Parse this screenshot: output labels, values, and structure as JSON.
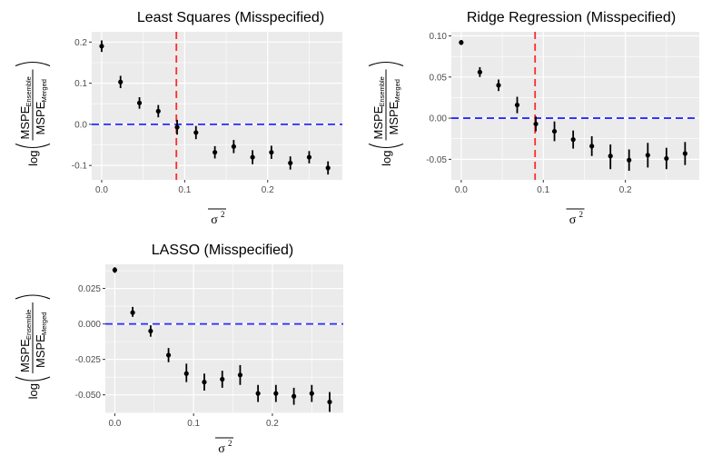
{
  "chart_data": [
    {
      "type": "scatter",
      "title": "Least Squares (Misspecified)",
      "xlabel": {
        "base": "σ",
        "sup": "2",
        "overline": true
      },
      "ylabel": {
        "log": "log",
        "numerator_main": "MSPE",
        "numerator_sub": "Ensemble",
        "denominator_main": "MSPE",
        "denominator_sub": "Merged"
      },
      "xlim": [
        -0.012,
        0.29
      ],
      "ylim": [
        -0.135,
        0.225
      ],
      "x_ticks": [
        0.0,
        0.1,
        0.2
      ],
      "x_tick_labels": [
        "0.0",
        "0.1",
        "0.2"
      ],
      "y_ticks": [
        -0.1,
        0.0,
        0.1,
        0.2
      ],
      "y_tick_labels": [
        "-0.1",
        "0.0",
        "0.1",
        "0.2"
      ],
      "vline": {
        "x": 0.09,
        "color": "#ff2b2b",
        "style": "dashed"
      },
      "hline": {
        "y": 0.0,
        "color": "#2b2bff",
        "style": "dashed"
      },
      "grid": true,
      "points": [
        {
          "x": 0.0,
          "y": 0.19,
          "lo": 0.176,
          "hi": 0.204
        },
        {
          "x": 0.0227,
          "y": 0.103,
          "lo": 0.088,
          "hi": 0.118
        },
        {
          "x": 0.0455,
          "y": 0.052,
          "lo": 0.038,
          "hi": 0.066
        },
        {
          "x": 0.0682,
          "y": 0.032,
          "lo": 0.017,
          "hi": 0.047
        },
        {
          "x": 0.0909,
          "y": -0.007,
          "lo": -0.025,
          "hi": 0.011
        },
        {
          "x": 0.1136,
          "y": -0.02,
          "lo": -0.036,
          "hi": -0.004
        },
        {
          "x": 0.1364,
          "y": -0.068,
          "lo": -0.083,
          "hi": -0.053
        },
        {
          "x": 0.1591,
          "y": -0.054,
          "lo": -0.07,
          "hi": -0.038
        },
        {
          "x": 0.1818,
          "y": -0.08,
          "lo": -0.097,
          "hi": -0.063
        },
        {
          "x": 0.2045,
          "y": -0.068,
          "lo": -0.084,
          "hi": -0.052
        },
        {
          "x": 0.2273,
          "y": -0.094,
          "lo": -0.11,
          "hi": -0.078
        },
        {
          "x": 0.25,
          "y": -0.08,
          "lo": -0.095,
          "hi": -0.065
        },
        {
          "x": 0.2727,
          "y": -0.106,
          "lo": -0.122,
          "hi": -0.09
        }
      ]
    },
    {
      "type": "scatter",
      "title": "Ridge Regression (Misspecified)",
      "xlabel": {
        "base": "σ",
        "sup": "2",
        "overline": true
      },
      "ylabel": {
        "log": "log",
        "numerator_main": "MSPE",
        "numerator_sub": "Ensemble",
        "denominator_main": "MSPE",
        "denominator_sub": "Merged"
      },
      "xlim": [
        -0.012,
        0.29
      ],
      "ylim": [
        -0.075,
        0.105
      ],
      "x_ticks": [
        0.0,
        0.1,
        0.2
      ],
      "x_tick_labels": [
        "0.0",
        "0.1",
        "0.2"
      ],
      "y_ticks": [
        -0.05,
        0.0,
        0.05,
        0.1
      ],
      "y_tick_labels": [
        "-0.05",
        "0.00",
        "0.05",
        "0.10"
      ],
      "vline": {
        "x": 0.09,
        "color": "#ff2b2b",
        "style": "dashed"
      },
      "hline": {
        "y": 0.0,
        "color": "#2b2bff",
        "style": "dashed"
      },
      "grid": true,
      "points": [
        {
          "x": 0.0,
          "y": 0.092,
          "lo": 0.089,
          "hi": 0.095
        },
        {
          "x": 0.0227,
          "y": 0.056,
          "lo": 0.05,
          "hi": 0.062
        },
        {
          "x": 0.0455,
          "y": 0.04,
          "lo": 0.033,
          "hi": 0.047
        },
        {
          "x": 0.0682,
          "y": 0.016,
          "lo": 0.006,
          "hi": 0.026
        },
        {
          "x": 0.0909,
          "y": -0.007,
          "lo": -0.016,
          "hi": 0.002
        },
        {
          "x": 0.1136,
          "y": -0.016,
          "lo": -0.028,
          "hi": -0.004
        },
        {
          "x": 0.1364,
          "y": -0.026,
          "lo": -0.037,
          "hi": -0.015
        },
        {
          "x": 0.1591,
          "y": -0.034,
          "lo": -0.046,
          "hi": -0.022
        },
        {
          "x": 0.1818,
          "y": -0.046,
          "lo": -0.062,
          "hi": -0.032
        },
        {
          "x": 0.2045,
          "y": -0.051,
          "lo": -0.064,
          "hi": -0.038
        },
        {
          "x": 0.2273,
          "y": -0.045,
          "lo": -0.06,
          "hi": -0.03
        },
        {
          "x": 0.25,
          "y": -0.049,
          "lo": -0.062,
          "hi": -0.036
        },
        {
          "x": 0.2727,
          "y": -0.043,
          "lo": -0.057,
          "hi": -0.029
        }
      ]
    },
    {
      "type": "scatter",
      "title": "LASSO (Misspecified)",
      "xlabel": {
        "base": "σ",
        "sup": "2",
        "overline": true
      },
      "ylabel": {
        "log": "log",
        "numerator_main": "MSPE",
        "numerator_sub": "Ensemble",
        "denominator_main": "MSPE",
        "denominator_sub": "Merged"
      },
      "xlim": [
        -0.012,
        0.29
      ],
      "ylim": [
        -0.063,
        0.042
      ],
      "x_ticks": [
        0.0,
        0.1,
        0.2
      ],
      "x_tick_labels": [
        "0.0",
        "0.1",
        "0.2"
      ],
      "y_ticks": [
        -0.05,
        -0.025,
        0.0,
        0.025
      ],
      "y_tick_labels": [
        "-0.050",
        "-0.025",
        "0.000",
        "0.025"
      ],
      "vline": null,
      "hline": {
        "y": 0.0,
        "color": "#2b2bff",
        "style": "dashed"
      },
      "grid": true,
      "points": [
        {
          "x": 0.0,
          "y": 0.038,
          "lo": 0.036,
          "hi": 0.04
        },
        {
          "x": 0.0227,
          "y": 0.008,
          "lo": 0.005,
          "hi": 0.012
        },
        {
          "x": 0.0455,
          "y": -0.005,
          "lo": -0.009,
          "hi": -0.001
        },
        {
          "x": 0.0682,
          "y": -0.022,
          "lo": -0.027,
          "hi": -0.017
        },
        {
          "x": 0.0909,
          "y": -0.035,
          "lo": -0.041,
          "hi": -0.028
        },
        {
          "x": 0.1136,
          "y": -0.041,
          "lo": -0.047,
          "hi": -0.035
        },
        {
          "x": 0.1364,
          "y": -0.039,
          "lo": -0.045,
          "hi": -0.033
        },
        {
          "x": 0.1591,
          "y": -0.036,
          "lo": -0.043,
          "hi": -0.029
        },
        {
          "x": 0.1818,
          "y": -0.049,
          "lo": -0.055,
          "hi": -0.043
        },
        {
          "x": 0.2045,
          "y": -0.049,
          "lo": -0.055,
          "hi": -0.043
        },
        {
          "x": 0.2273,
          "y": -0.051,
          "lo": -0.057,
          "hi": -0.045
        },
        {
          "x": 0.25,
          "y": -0.049,
          "lo": -0.055,
          "hi": -0.043
        },
        {
          "x": 0.2727,
          "y": -0.055,
          "lo": -0.062,
          "hi": -0.048
        }
      ]
    }
  ]
}
